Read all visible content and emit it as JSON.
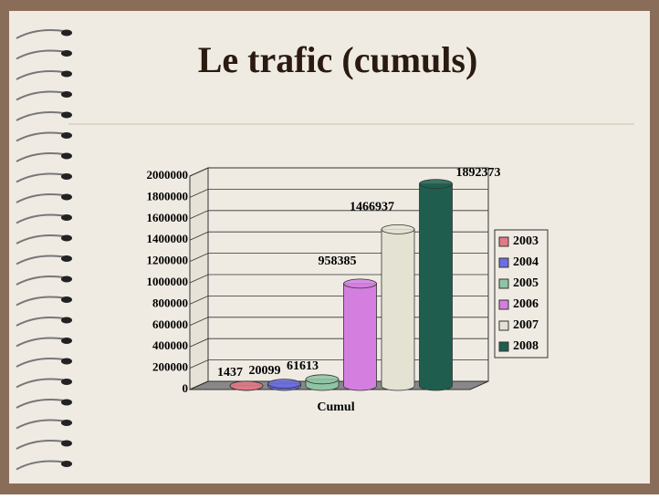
{
  "chart_data": {
    "type": "bar",
    "title": "Le trafic (cumuls)",
    "x_label": "Cumul",
    "categories": [
      "Cumul"
    ],
    "series": [
      {
        "name": "2003",
        "color": "#e07a86",
        "values": [
          1437
        ]
      },
      {
        "name": "2004",
        "color": "#6c6ee0",
        "values": [
          20099
        ]
      },
      {
        "name": "2005",
        "color": "#8fc4a4",
        "values": [
          61613
        ]
      },
      {
        "name": "2006",
        "color": "#d47fe0",
        "values": [
          958385
        ]
      },
      {
        "name": "2007",
        "color": "#e4e2d2",
        "values": [
          1466937
        ]
      },
      {
        "name": "2008",
        "color": "#1f5e4e",
        "values": [
          1892373
        ]
      }
    ],
    "ylim": [
      0,
      2000000
    ],
    "yticks": [
      0,
      200000,
      400000,
      600000,
      800000,
      1000000,
      1200000,
      1400000,
      1600000,
      1800000,
      2000000
    ],
    "grid": true,
    "legend": "right"
  }
}
